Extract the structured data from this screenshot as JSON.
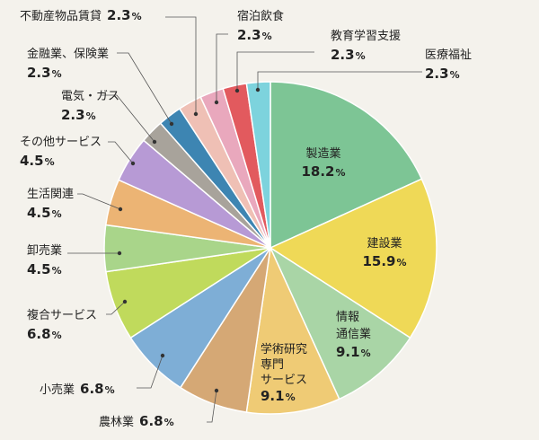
{
  "chart_data": {
    "type": "pie",
    "title": "",
    "unit": "%",
    "slices": [
      {
        "label": "製造業",
        "value": 18.2,
        "color": "#7dc595"
      },
      {
        "label": "建設業",
        "value": 15.9,
        "color": "#efd957"
      },
      {
        "label": "情報\n通信業",
        "value": 9.1,
        "color": "#a9d5a6"
      },
      {
        "label": "学術研究\n専門\nサービス",
        "value": 9.1,
        "color": "#efcb75"
      },
      {
        "label": "農林業",
        "value": 6.8,
        "color": "#d5a875"
      },
      {
        "label": "小売業",
        "value": 6.8,
        "color": "#7eaed6"
      },
      {
        "label": "複合サービス",
        "value": 6.8,
        "color": "#c0da5c"
      },
      {
        "label": "卸売業",
        "value": 4.5,
        "color": "#a9d58a"
      },
      {
        "label": "生活関連",
        "value": 4.5,
        "color": "#ecb474"
      },
      {
        "label": "その他サービス",
        "value": 4.5,
        "color": "#b79ad5"
      },
      {
        "label": "電気・ガス",
        "value": 2.3,
        "color": "#a8a39b"
      },
      {
        "label": "金融業、保険業",
        "value": 2.3,
        "color": "#3d85b2"
      },
      {
        "label": "不動産物品賃貸",
        "value": 2.3,
        "color": "#efc0b5"
      },
      {
        "label": "宿泊飲食",
        "value": 2.3,
        "color": "#e9a8bd"
      },
      {
        "label": "教育学習支援",
        "value": 2.3,
        "color": "#e25a5e"
      },
      {
        "label": "医療福祉",
        "value": 2.3,
        "color": "#7dd3dd"
      }
    ]
  }
}
